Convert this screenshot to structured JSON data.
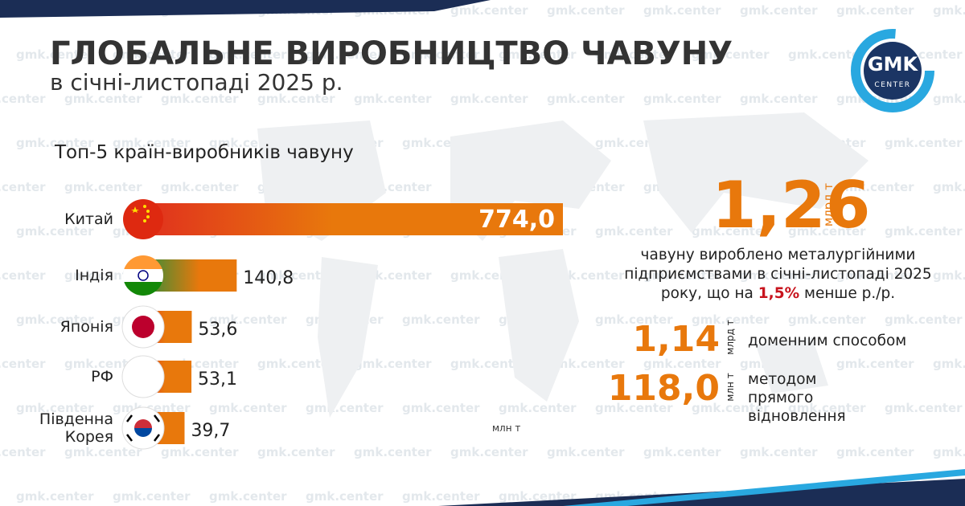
{
  "header": {
    "title": "ГЛОБАЛЬНЕ ВИРОБНИЦТВО ЧАВУНУ",
    "subtitle": "в січні-листопаді 2025 р."
  },
  "logo": {
    "line1": "GMK",
    "line2": "CENTER"
  },
  "watermark": "gmk.center",
  "chart_data": {
    "type": "bar",
    "title": "Топ-5 країн-виробників чавуну",
    "categories": [
      "Китай",
      "Індія",
      "Японія",
      "РФ",
      "Південна Корея"
    ],
    "values": [
      774.0,
      140.8,
      53.6,
      53.1,
      39.7
    ],
    "value_labels": [
      "774,0",
      "140,8",
      "53,6",
      "53,1",
      "39,7"
    ],
    "unit": "млн т",
    "color": "#e8780c"
  },
  "summary": {
    "total": "1,26",
    "total_unit": "млрд т",
    "text_before": "чавуну вироблено металургійними підприємствами в січні-листопаді 2025 року, що на",
    "highlight": "1,5%",
    "text_after": "менше р./р.",
    "stats": [
      {
        "value": "1,14",
        "unit": "млрд т",
        "label": "доменним способом"
      },
      {
        "value": "118,0",
        "unit": "млн т",
        "label": "методом прямого відновлення"
      }
    ]
  }
}
